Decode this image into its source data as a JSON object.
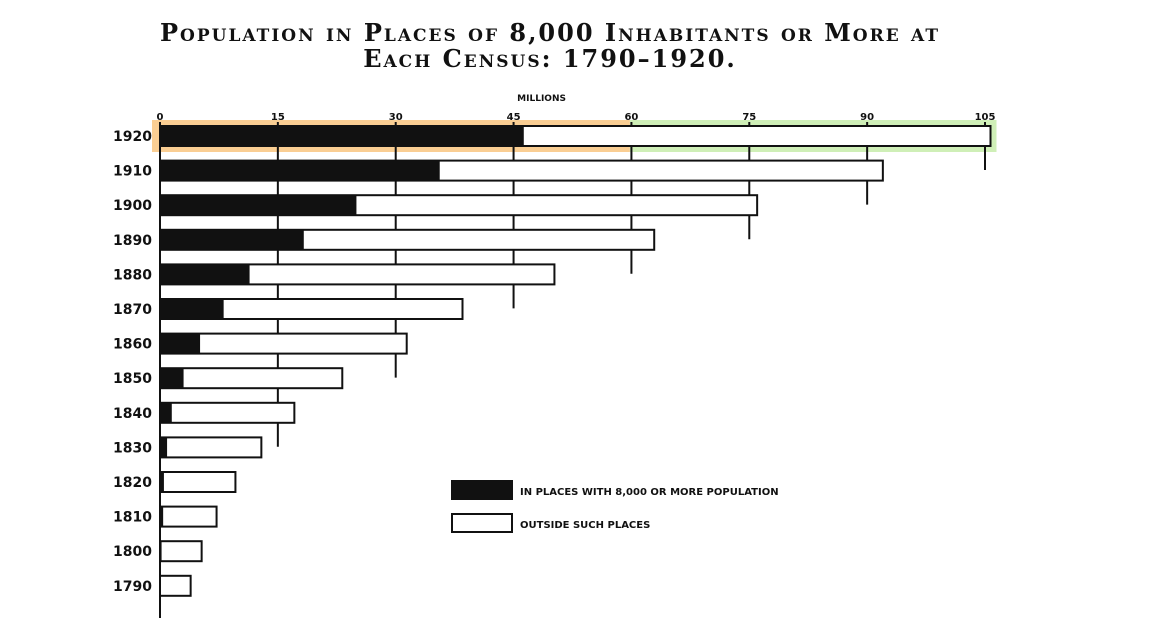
{
  "chart_data": {
    "type": "bar",
    "orientation": "horizontal",
    "stacked": true,
    "title_line1": "Population in Places of 8,000 Inhabitants or More at",
    "title_line2": "Each Census: 1790–1920.",
    "unit_label": "MILLIONS",
    "x_ticks": [
      "0",
      "15",
      "30",
      "45",
      "60",
      "75",
      "90",
      "105"
    ],
    "xlim": [
      0,
      105
    ],
    "grid": true,
    "categories": [
      "1920",
      "1910",
      "1900",
      "1890",
      "1880",
      "1870",
      "1860",
      "1850",
      "1840",
      "1830",
      "1820",
      "1810",
      "1800",
      "1790"
    ],
    "series": [
      {
        "name": "IN PLACES WITH 8,000 OR MORE POPULATION",
        "values": [
          46.3,
          35.6,
          25.0,
          18.3,
          11.4,
          8.1,
          5.1,
          3.0,
          1.5,
          0.9,
          0.5,
          0.4,
          0.2,
          0.1
        ]
      },
      {
        "name": "OUTSIDE SUCH PLACES",
        "values": [
          59.4,
          56.4,
          51.0,
          44.6,
          38.8,
          30.4,
          26.3,
          20.2,
          15.6,
          12.0,
          9.1,
          6.8,
          5.1,
          3.8
        ]
      }
    ],
    "legend_position": "bottom-right",
    "colors": {
      "urban": "#111111",
      "outside": "#ffffff",
      "highlight_orange": "#f5a63a",
      "highlight_green": "#a8e27c"
    }
  }
}
